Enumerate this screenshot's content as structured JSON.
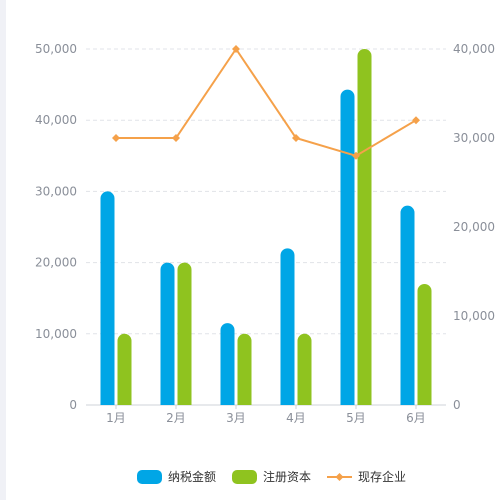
{
  "chart_data": {
    "type": "bar",
    "categories": [
      "1月",
      "2月",
      "3月",
      "4月",
      "5月",
      "6月"
    ],
    "series": [
      {
        "name": "纳税金额",
        "kind": "bar",
        "axis": "left",
        "color": "#00a6e6",
        "values": [
          30000,
          20000,
          11500,
          22000,
          44300,
          28000
        ]
      },
      {
        "name": "注册资本",
        "kind": "bar",
        "axis": "left",
        "color": "#8fc31f",
        "values": [
          10000,
          20000,
          10000,
          10000,
          50000,
          17000
        ]
      },
      {
        "name": "现存企业",
        "kind": "line",
        "axis": "right",
        "color": "#f5a14a",
        "values": [
          30000,
          30000,
          40000,
          30000,
          28000,
          32000
        ]
      }
    ],
    "left_axis": {
      "ylim": [
        0,
        50000
      ],
      "ticks": [
        "0",
        "10,000",
        "20,000",
        "30,000",
        "40,000",
        "50,000"
      ]
    },
    "right_axis": {
      "ylim": [
        0,
        40000
      ],
      "ticks": [
        "0",
        "10,000",
        "20,000",
        "30,000",
        "40,000"
      ]
    },
    "grid": true,
    "legend_position": "bottom-center"
  }
}
